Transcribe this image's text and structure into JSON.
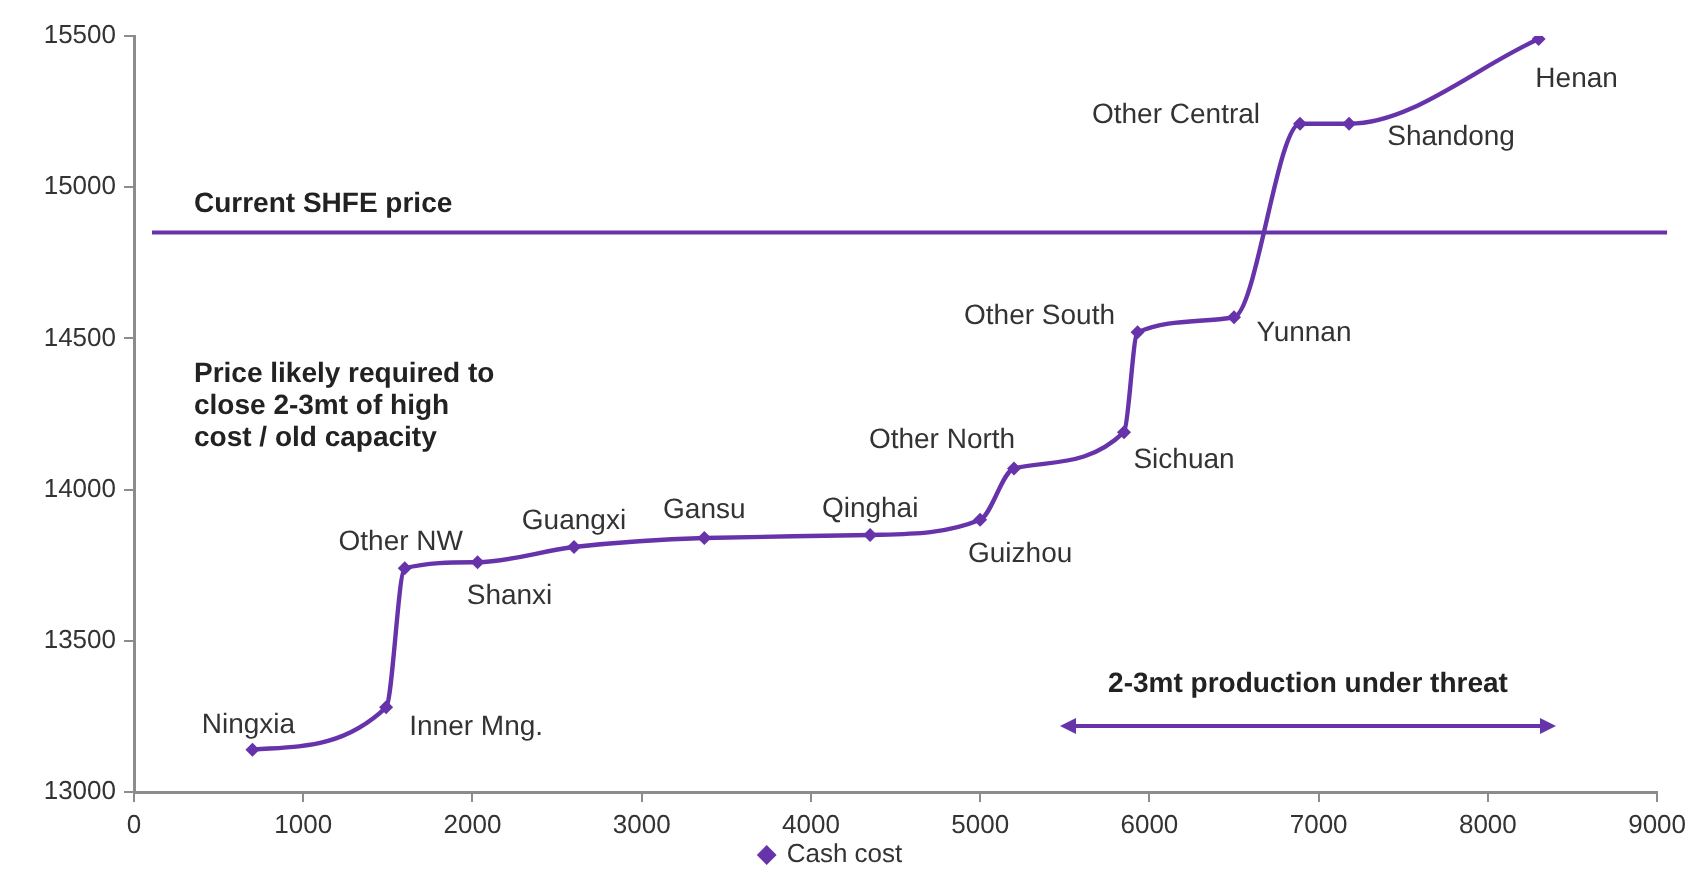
{
  "chart_data": {
    "type": "line",
    "x": [
      700,
      1490,
      1600,
      2030,
      2600,
      3370,
      4350,
      5000,
      5200,
      5850,
      5930,
      6500,
      6890,
      7180,
      8300
    ],
    "series": [
      {
        "name": "Cash cost",
        "color": "#6633aa",
        "values": [
          13140,
          13280,
          13740,
          13760,
          13810,
          13840,
          13850,
          13900,
          14070,
          14190,
          14520,
          14570,
          15210,
          15210,
          15490
        ]
      }
    ],
    "xlim": [
      0,
      9000
    ],
    "xticks": [
      0,
      1000,
      2000,
      3000,
      4000,
      5000,
      6000,
      7000,
      8000,
      9000
    ],
    "ylim": [
      13000,
      15500
    ],
    "yticks": [
      13000,
      13500,
      14000,
      14500,
      15000,
      15500
    ],
    "grid": false,
    "legend": "bottom",
    "marker": "diamond",
    "line_style": "solid",
    "ref_lines": [
      {
        "axis": "y",
        "value": 14850,
        "label": "Current SHFE price",
        "color": "#6633aa"
      }
    ],
    "annotations": [
      "Price likely required to close 2-3mt of high cost / old capacity",
      {
        "text": "Ningxia",
        "x": 700,
        "y": 13140
      },
      {
        "text": "Inner Mng.",
        "x": 1490,
        "y": 13280
      },
      {
        "text": "Other NW",
        "x": 1600,
        "y": 13740
      },
      {
        "text": "Shanxi",
        "x": 2030,
        "y": 13760
      },
      {
        "text": "Guangxi",
        "x": 2600,
        "y": 13810
      },
      {
        "text": "Gansu",
        "x": 3370,
        "y": 13840
      },
      {
        "text": "Qinghai",
        "x": 4350,
        "y": 13850
      },
      {
        "text": "Guizhou",
        "x": 5000,
        "y": 13900
      },
      {
        "text": "Other North",
        "x": 5200,
        "y": 14070
      },
      {
        "text": "Sichuan",
        "x": 5850,
        "y": 14190
      },
      {
        "text": "Other South",
        "x": 5930,
        "y": 14520
      },
      {
        "text": "Yunnan",
        "x": 6500,
        "y": 14570
      },
      {
        "text": "Other Central",
        "x": 6890,
        "y": 15210
      },
      {
        "text": "Shandong",
        "x": 7180,
        "y": 15210
      },
      {
        "text": "Henan",
        "x": 8300,
        "y": 15490
      },
      "2-3mt production under threat"
    ]
  }
}
